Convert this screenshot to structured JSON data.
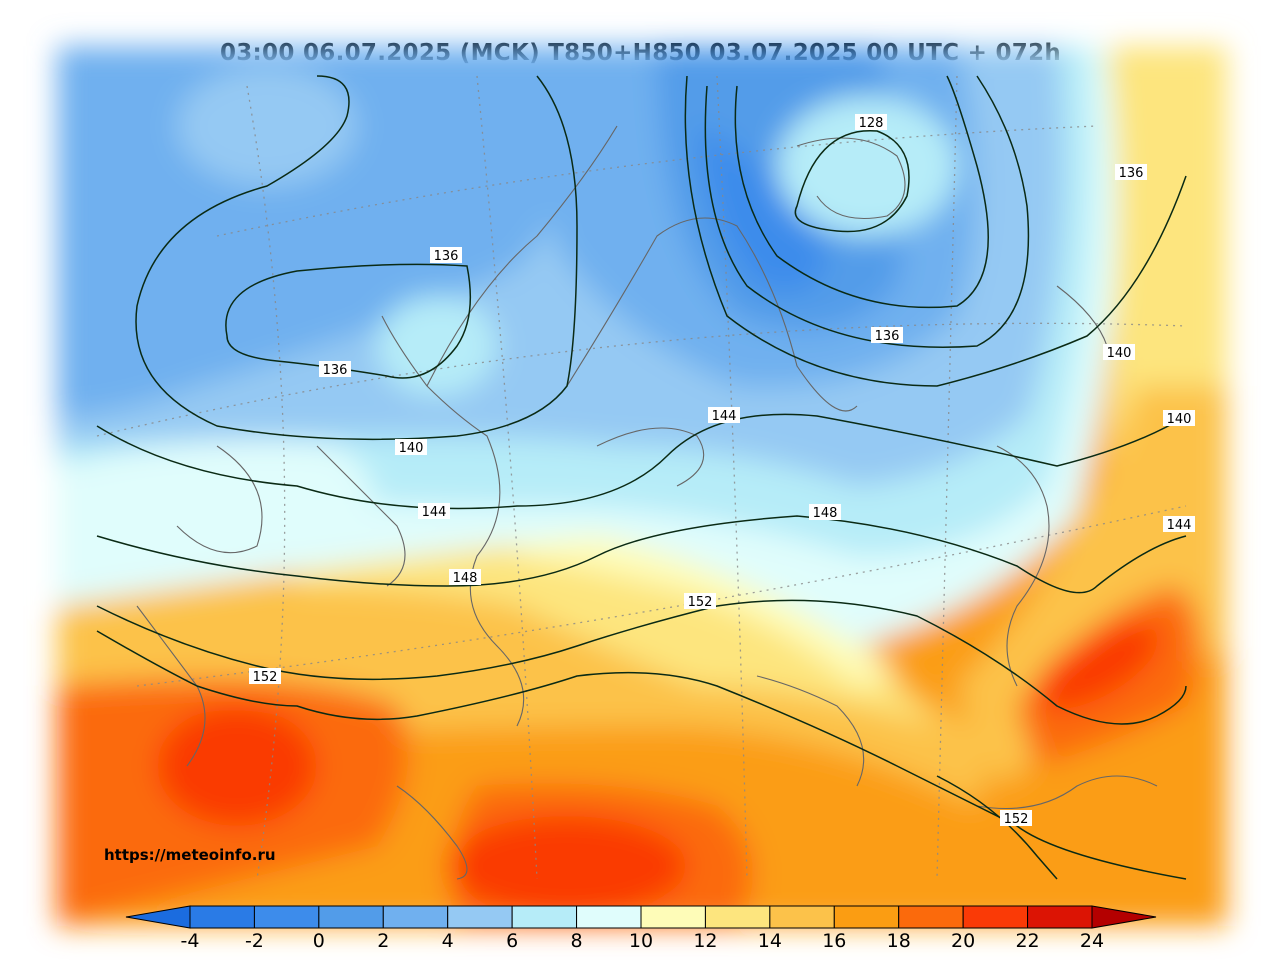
{
  "title": "03:00 06.07.2025 (MCK) T850+H850 03.07.2025 00 UTC + 072h",
  "source_url": "https://meteoinfo.ru",
  "contour_labels": [
    "128",
    "136",
    "136",
    "136",
    "136",
    "140",
    "140",
    "140",
    "144",
    "144",
    "144",
    "148",
    "148",
    "152",
    "152",
    "152"
  ],
  "colorbar": {
    "ticks": [
      "-4",
      "-2",
      "0",
      "2",
      "4",
      "6",
      "8",
      "10",
      "12",
      "14",
      "16",
      "18",
      "20",
      "22",
      "24"
    ],
    "colors": [
      "#2a7be6",
      "#3d8ceb",
      "#529ce9",
      "#70b0ef",
      "#95c9f3",
      "#b6ecf8",
      "#e0fdfc",
      "#fefcb8",
      "#fde57e",
      "#fcc24a",
      "#fb9d12",
      "#fb6a0c",
      "#fa3a06",
      "#dc1404"
    ],
    "under_color": "#1b6cdf",
    "over_color": "#b40000"
  }
}
